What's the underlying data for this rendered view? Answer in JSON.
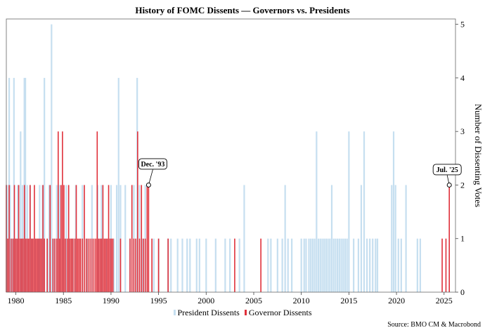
{
  "chart_data": {
    "type": "bar",
    "title": "History of FOMC Dissents — Governors vs. Presidents",
    "ylabel": "Number of Dissenting Votes",
    "xlim": [
      1979,
      2026.2
    ],
    "ylim": [
      0,
      5.1
    ],
    "x_ticks": [
      1980,
      1985,
      1990,
      1995,
      2000,
      2005,
      2010,
      2015,
      2020,
      2025
    ],
    "y_ticks": [
      0,
      1,
      2,
      3,
      4,
      5
    ],
    "grid": false,
    "legend_position": "bottom-center",
    "colors": {
      "presidents": "#c6dff0",
      "governors": "#e0303a"
    },
    "series": [
      {
        "name": "President Dissents",
        "points": [
          [
            1979.1,
            2
          ],
          [
            1979.3,
            4
          ],
          [
            1979.4,
            2
          ],
          [
            1979.6,
            1
          ],
          [
            1979.8,
            4
          ],
          [
            1980.0,
            1
          ],
          [
            1980.2,
            2
          ],
          [
            1980.5,
            3
          ],
          [
            1980.7,
            2
          ],
          [
            1980.9,
            4
          ],
          [
            1981.0,
            4
          ],
          [
            1981.2,
            2
          ],
          [
            1981.5,
            2
          ],
          [
            1981.7,
            1
          ],
          [
            1982.0,
            1
          ],
          [
            1982.3,
            1
          ],
          [
            1982.5,
            2
          ],
          [
            1982.8,
            2
          ],
          [
            1983.0,
            4
          ],
          [
            1983.3,
            1
          ],
          [
            1983.5,
            2
          ],
          [
            1983.75,
            5
          ],
          [
            1984.0,
            1
          ],
          [
            1984.3,
            2
          ],
          [
            1984.6,
            2
          ],
          [
            1985.0,
            1
          ],
          [
            1985.3,
            2
          ],
          [
            1985.6,
            1
          ],
          [
            1986.0,
            1
          ],
          [
            1986.3,
            2
          ],
          [
            1987.0,
            2
          ],
          [
            1987.5,
            1
          ],
          [
            1988.0,
            2
          ],
          [
            1988.6,
            2
          ],
          [
            1989.0,
            2
          ],
          [
            1989.5,
            1
          ],
          [
            1990.0,
            2
          ],
          [
            1990.3,
            1
          ],
          [
            1990.6,
            2
          ],
          [
            1990.8,
            4
          ],
          [
            1991.0,
            2
          ],
          [
            1991.5,
            2
          ],
          [
            1992.0,
            1
          ],
          [
            1992.4,
            2
          ],
          [
            1992.75,
            4
          ],
          [
            1993.0,
            2
          ],
          [
            1993.3,
            1
          ],
          [
            1993.6,
            2
          ],
          [
            1994.5,
            1
          ],
          [
            1995.0,
            1
          ],
          [
            1996.0,
            1
          ],
          [
            1996.3,
            1
          ],
          [
            1997.0,
            1
          ],
          [
            1997.5,
            1
          ],
          [
            1998.0,
            1
          ],
          [
            1998.3,
            1
          ],
          [
            1999.0,
            1
          ],
          [
            1999.3,
            1
          ],
          [
            2000.0,
            1
          ],
          [
            2001.0,
            1
          ],
          [
            2002.0,
            1
          ],
          [
            2002.5,
            1
          ],
          [
            2003.5,
            1
          ],
          [
            2004.0,
            2
          ],
          [
            2006.5,
            1
          ],
          [
            2006.8,
            1
          ],
          [
            2007.5,
            1
          ],
          [
            2008.0,
            1
          ],
          [
            2008.3,
            2
          ],
          [
            2008.6,
            1
          ],
          [
            2009.0,
            1
          ],
          [
            2010.0,
            1
          ],
          [
            2010.3,
            1
          ],
          [
            2010.5,
            1
          ],
          [
            2010.8,
            1
          ],
          [
            2011.0,
            1
          ],
          [
            2011.2,
            1
          ],
          [
            2011.4,
            1
          ],
          [
            2011.6,
            3
          ],
          [
            2011.8,
            1
          ],
          [
            2012.0,
            1
          ],
          [
            2012.2,
            1
          ],
          [
            2012.4,
            1
          ],
          [
            2012.6,
            1
          ],
          [
            2012.8,
            1
          ],
          [
            2013.0,
            1
          ],
          [
            2013.2,
            2
          ],
          [
            2013.4,
            1
          ],
          [
            2013.6,
            1
          ],
          [
            2013.8,
            1
          ],
          [
            2014.0,
            1
          ],
          [
            2014.2,
            1
          ],
          [
            2014.4,
            1
          ],
          [
            2014.6,
            1
          ],
          [
            2014.8,
            1
          ],
          [
            2015.0,
            3
          ],
          [
            2015.5,
            1
          ],
          [
            2016.0,
            1
          ],
          [
            2016.3,
            2
          ],
          [
            2016.6,
            3
          ],
          [
            2016.9,
            1
          ],
          [
            2017.2,
            1
          ],
          [
            2017.5,
            1
          ],
          [
            2017.8,
            1
          ],
          [
            2018.0,
            1
          ],
          [
            2019.5,
            2
          ],
          [
            2019.7,
            3
          ],
          [
            2019.9,
            2
          ],
          [
            2020.2,
            1
          ],
          [
            2020.5,
            1
          ],
          [
            2021.0,
            2
          ],
          [
            2022.2,
            1
          ],
          [
            2022.5,
            1
          ]
        ]
      },
      {
        "name": "Governor Dissents",
        "points": [
          [
            1979.0,
            2
          ],
          [
            1979.15,
            1
          ],
          [
            1979.3,
            2
          ],
          [
            1979.5,
            1
          ],
          [
            1979.7,
            1
          ],
          [
            1979.85,
            2
          ],
          [
            1980.0,
            1
          ],
          [
            1980.15,
            1
          ],
          [
            1980.3,
            2
          ],
          [
            1980.45,
            1
          ],
          [
            1980.6,
            1
          ],
          [
            1980.75,
            1
          ],
          [
            1980.9,
            2
          ],
          [
            1981.05,
            1
          ],
          [
            1981.2,
            1
          ],
          [
            1981.35,
            1
          ],
          [
            1981.5,
            2
          ],
          [
            1981.65,
            1
          ],
          [
            1981.8,
            1
          ],
          [
            1981.95,
            2
          ],
          [
            1982.1,
            1
          ],
          [
            1982.25,
            1
          ],
          [
            1982.4,
            1
          ],
          [
            1982.55,
            1
          ],
          [
            1982.7,
            1
          ],
          [
            1982.85,
            2
          ],
          [
            1983.0,
            1
          ],
          [
            1983.3,
            1
          ],
          [
            1983.6,
            2
          ],
          [
            1983.9,
            1
          ],
          [
            1984.1,
            1
          ],
          [
            1984.3,
            1
          ],
          [
            1984.45,
            3
          ],
          [
            1984.6,
            1
          ],
          [
            1984.75,
            2
          ],
          [
            1984.9,
            3
          ],
          [
            1985.05,
            2
          ],
          [
            1985.2,
            1
          ],
          [
            1985.4,
            1
          ],
          [
            1985.55,
            2
          ],
          [
            1985.7,
            1
          ],
          [
            1985.85,
            1
          ],
          [
            1986.0,
            1
          ],
          [
            1986.2,
            1
          ],
          [
            1986.35,
            2
          ],
          [
            1986.5,
            1
          ],
          [
            1986.65,
            1
          ],
          [
            1986.8,
            1
          ],
          [
            1987.0,
            1
          ],
          [
            1987.2,
            2
          ],
          [
            1987.4,
            1
          ],
          [
            1987.6,
            1
          ],
          [
            1987.8,
            1
          ],
          [
            1988.0,
            1
          ],
          [
            1988.2,
            1
          ],
          [
            1988.4,
            1
          ],
          [
            1988.55,
            3
          ],
          [
            1988.7,
            1
          ],
          [
            1988.85,
            1
          ],
          [
            1989.0,
            1
          ],
          [
            1989.15,
            2
          ],
          [
            1989.3,
            1
          ],
          [
            1989.45,
            1
          ],
          [
            1989.6,
            1
          ],
          [
            1989.75,
            2
          ],
          [
            1989.9,
            1
          ],
          [
            1990.05,
            1
          ],
          [
            1990.2,
            1
          ],
          [
            1991.0,
            1
          ],
          [
            1992.0,
            1
          ],
          [
            1992.2,
            2
          ],
          [
            1992.4,
            1
          ],
          [
            1992.6,
            1
          ],
          [
            1992.8,
            3
          ],
          [
            1993.0,
            1
          ],
          [
            1993.2,
            2
          ],
          [
            1993.4,
            1
          ],
          [
            1993.6,
            1
          ],
          [
            1993.8,
            2
          ],
          [
            1993.95,
            2
          ],
          [
            1994.3,
            1
          ],
          [
            1995.0,
            1
          ],
          [
            1996.0,
            1
          ],
          [
            2003.0,
            1
          ],
          [
            2005.75,
            1
          ],
          [
            2024.8,
            1
          ],
          [
            2025.2,
            1
          ],
          [
            2025.55,
            2
          ]
        ]
      }
    ],
    "annotations": [
      {
        "label": "Dec. '93",
        "x": 1993.95,
        "y": 2
      },
      {
        "label": "Jul. '25",
        "x": 2025.55,
        "y": 2
      }
    ]
  },
  "source": "Source: BMO CM & Macrobond"
}
